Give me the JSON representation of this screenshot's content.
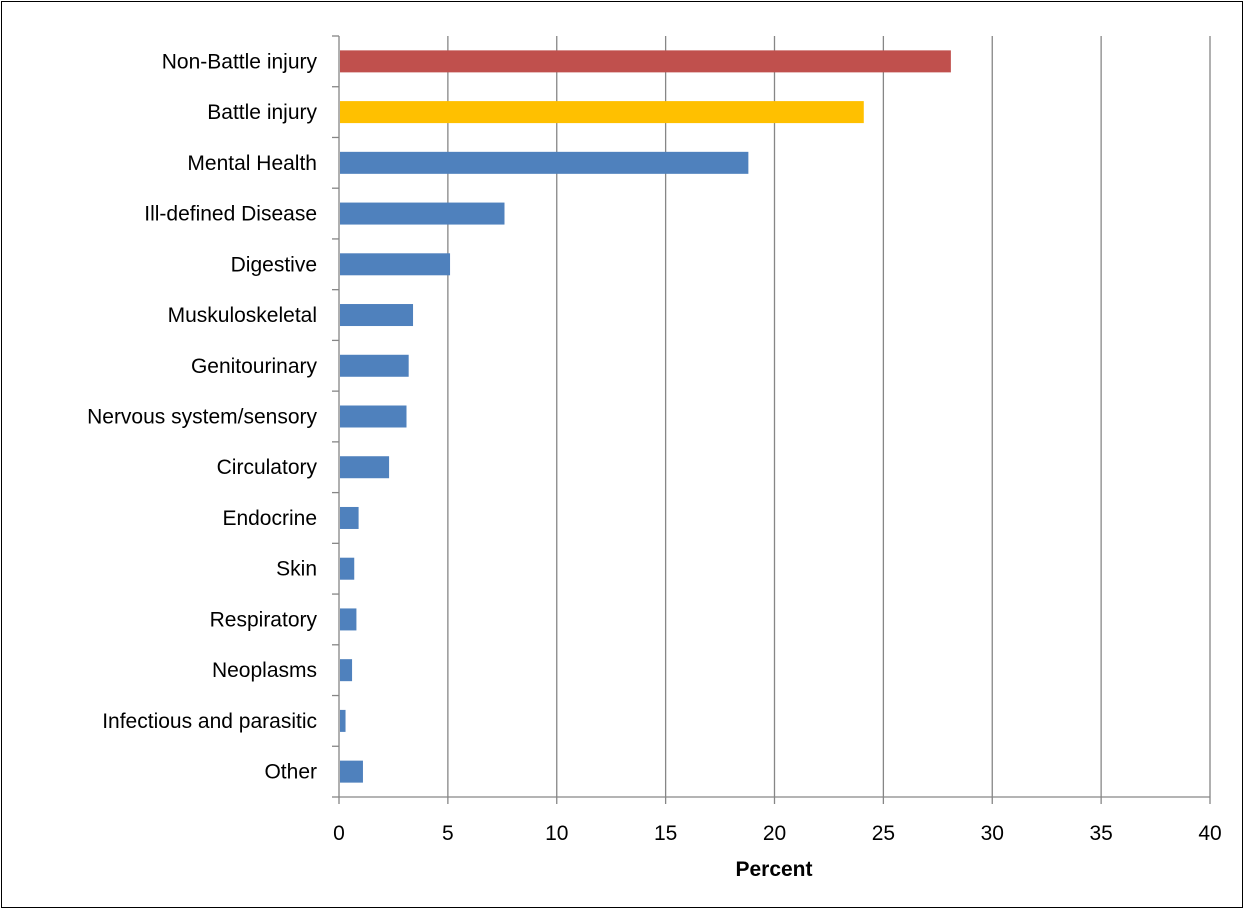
{
  "chart_data": {
    "type": "bar",
    "orientation": "horizontal",
    "categories": [
      "Non-Battle injury",
      "Battle injury",
      "Mental Health",
      "Ill-defined Disease",
      "Digestive",
      "Muskuloskeletal",
      "Genitourinary",
      "Nervous system/sensory",
      "Circulatory",
      "Endocrine",
      "Skin",
      "Respiratory",
      "Neoplasms",
      "Infectious and parasitic",
      "Other"
    ],
    "values": [
      28.1,
      24.1,
      18.8,
      7.6,
      5.1,
      3.4,
      3.2,
      3.1,
      2.3,
      0.9,
      0.7,
      0.8,
      0.6,
      0.3,
      1.1
    ],
    "bar_colors": [
      "#C0504D",
      "#FFC000",
      "#4F81BD",
      "#4F81BD",
      "#4F81BD",
      "#4F81BD",
      "#4F81BD",
      "#4F81BD",
      "#4F81BD",
      "#4F81BD",
      "#4F81BD",
      "#4F81BD",
      "#4F81BD",
      "#4F81BD",
      "#4F81BD"
    ],
    "xlabel": "Percent",
    "ylabel": "",
    "title": "",
    "xlim": [
      0,
      40
    ],
    "xticks": [
      0,
      5,
      10,
      15,
      20,
      25,
      30,
      35,
      40
    ],
    "grid": "vertical major gridlines",
    "legend": "none"
  }
}
